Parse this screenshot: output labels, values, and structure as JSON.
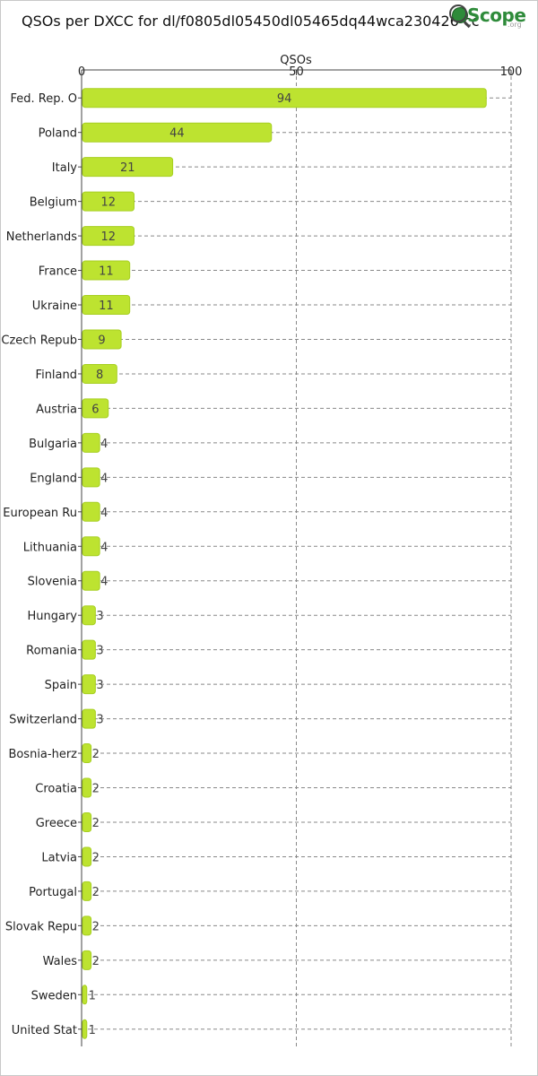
{
  "header": {
    "title": "QSOs per DXCC for dl/f0805dl05450dl05465dq44wca230426 cc",
    "logo_text": "Scope",
    "logo_suffix": ".org"
  },
  "colors": {
    "bar_fill": "#bde330",
    "bar_stroke": "#a7cf22",
    "grid": "#888888",
    "axis": "#444444"
  },
  "chart_data": {
    "type": "bar",
    "orientation": "horizontal",
    "title": "QSOs per DXCC for dl/f0805dl05450dl05465dq44wca230426 cc",
    "xlabel": "QSOs",
    "ylabel": "",
    "xlim": [
      0,
      100
    ],
    "xticks": [
      0,
      50,
      100
    ],
    "grid": true,
    "categories": [
      "Fed. Rep. O",
      "Poland",
      "Italy",
      "Belgium",
      "Netherlands",
      "France",
      "Ukraine",
      "Czech Repub",
      "Finland",
      "Austria",
      "Bulgaria",
      "England",
      "European Ru",
      "Lithuania",
      "Slovenia",
      "Hungary",
      "Romania",
      "Spain",
      "Switzerland",
      "Bosnia-herz",
      "Croatia",
      "Greece",
      "Latvia",
      "Portugal",
      "Slovak Repu",
      "Wales",
      "Sweden",
      "United Stat"
    ],
    "values": [
      94,
      44,
      21,
      12,
      12,
      11,
      11,
      9,
      8,
      6,
      4,
      4,
      4,
      4,
      4,
      3,
      3,
      3,
      3,
      2,
      2,
      2,
      2,
      2,
      2,
      2,
      1,
      1
    ]
  }
}
